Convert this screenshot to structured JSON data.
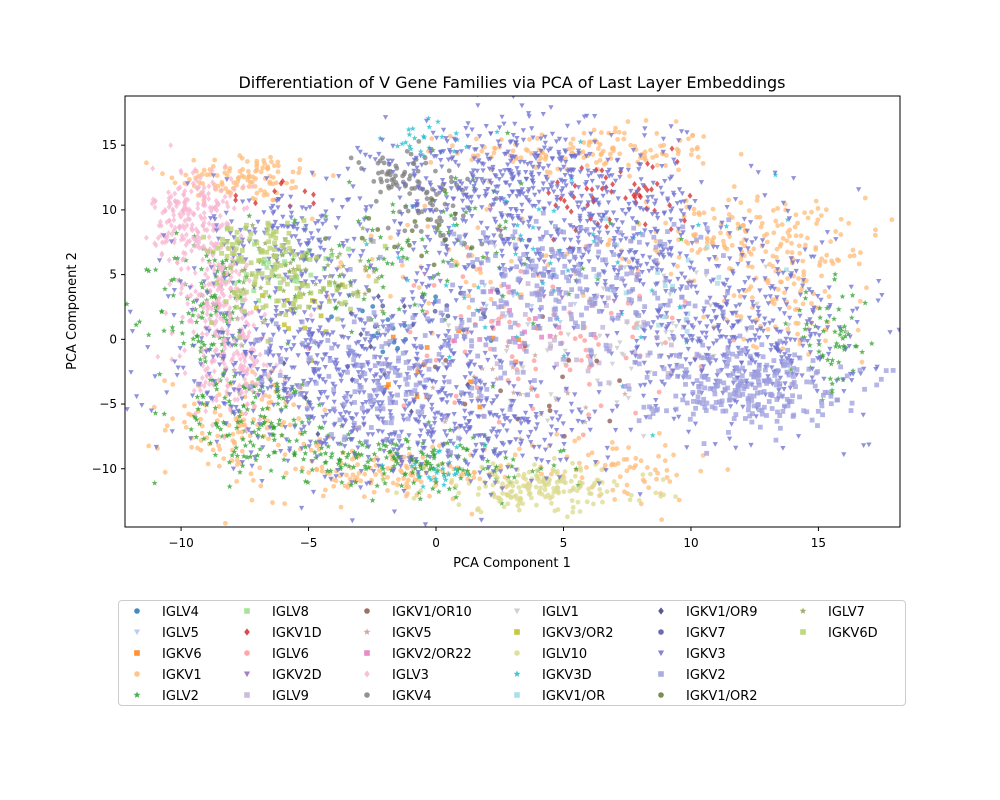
{
  "chart_data": {
    "type": "scatter",
    "title": "Differentiation of V Gene Families via PCA of Last Layer Embeddings",
    "xlabel": "PCA Component 1",
    "ylabel": "PCA Component 2",
    "xlim": [
      -12.2,
      18.2
    ],
    "ylim": [
      -14.5,
      18.8
    ],
    "xticks": [
      -10,
      -5,
      0,
      5,
      10,
      15
    ],
    "yticks": [
      -10,
      -5,
      0,
      5,
      10,
      15
    ],
    "grid": false,
    "legend_placement": "below plot, 6 columns",
    "series": [
      {
        "name": "IGLV4",
        "color": "#1f77b4",
        "marker": "circle",
        "clusters": [
          [
            -2,
            1,
            1.5,
            1.5,
            15
          ]
        ]
      },
      {
        "name": "IGLV5",
        "color": "#aec7e8",
        "marker": "triangle-down",
        "clusters": [
          [
            3,
            2,
            2,
            1.5,
            15
          ]
        ]
      },
      {
        "name": "IGKV6",
        "color": "#ff7f0e",
        "marker": "square",
        "clusters": [
          [
            1,
            -2,
            2,
            2,
            15
          ]
        ]
      },
      {
        "name": "IGKV1",
        "color": "#ffbb78",
        "marker": "circle",
        "clusters": [
          [
            -7.5,
            12.5,
            1.5,
            1.0,
            110
          ],
          [
            6,
            14.5,
            2.5,
            1.0,
            140
          ],
          [
            12,
            8,
            2.5,
            1.5,
            140
          ],
          [
            14,
            3.5,
            1.5,
            2.5,
            110
          ],
          [
            -7.5,
            -6.5,
            1.5,
            2.0,
            120
          ],
          [
            -2,
            -10.5,
            2.5,
            1.0,
            130
          ],
          [
            7,
            -10,
            2,
            1.5,
            70
          ],
          [
            2,
            6,
            3,
            2.5,
            60
          ]
        ]
      },
      {
        "name": "IGLV2",
        "color": "#2ca02c",
        "marker": "star",
        "clusters": [
          [
            -9,
            2,
            1.0,
            3.0,
            120
          ],
          [
            -7,
            -5.5,
            1.5,
            1.5,
            110
          ],
          [
            -3,
            -9,
            2.5,
            1.0,
            140
          ],
          [
            1,
            -10,
            2,
            1.0,
            60
          ],
          [
            15.5,
            0,
            0.8,
            2.0,
            60
          ],
          [
            -4,
            5,
            3,
            3,
            60
          ],
          [
            1,
            8,
            3,
            3,
            60
          ]
        ]
      },
      {
        "name": "IGLV8",
        "color": "#98df8a",
        "marker": "square",
        "clusters": [
          [
            -6,
            5,
            1.5,
            1.5,
            30
          ]
        ]
      },
      {
        "name": "IGKV1D",
        "color": "#d62728",
        "marker": "diamond",
        "clusters": [
          [
            7,
            11,
            1.5,
            1.5,
            55
          ],
          [
            -6,
            11,
            1,
            0.8,
            10
          ]
        ]
      },
      {
        "name": "IGLV6",
        "color": "#ff9896",
        "marker": "circle",
        "clusters": [
          [
            4,
            0,
            3,
            3,
            90
          ]
        ]
      },
      {
        "name": "IGKV2D",
        "color": "#9467bd",
        "marker": "triangle-down",
        "clusters": [
          [
            5,
            5,
            2.5,
            2,
            20
          ]
        ]
      },
      {
        "name": "IGLV9",
        "color": "#c5b0d5",
        "marker": "square",
        "clusters": [
          [
            6,
            0,
            2.5,
            2.5,
            40
          ]
        ]
      },
      {
        "name": "IGKV1/OR10",
        "color": "#8c564b",
        "marker": "circle",
        "clusters": [
          [
            4,
            -4,
            2,
            2,
            15
          ]
        ]
      },
      {
        "name": "IGKV5",
        "color": "#c49c94",
        "marker": "star",
        "clusters": [
          [
            3,
            -3,
            2,
            2,
            25
          ]
        ]
      },
      {
        "name": "IGKV2/OR22",
        "color": "#e377c2",
        "marker": "square",
        "clusters": [
          [
            3,
            1,
            2,
            2,
            15
          ]
        ]
      },
      {
        "name": "IGLV3",
        "color": "#f7b6d2",
        "marker": "diamond",
        "clusters": [
          [
            -9.5,
            9.5,
            0.8,
            2.0,
            200
          ],
          [
            -8.5,
            3,
            0.9,
            2.5,
            180
          ],
          [
            -7.8,
            -2.5,
            0.8,
            2.0,
            120
          ]
        ]
      },
      {
        "name": "IGKV4",
        "color": "#7f7f7f",
        "marker": "circle",
        "clusters": [
          [
            -1.5,
            12.5,
            1.2,
            1.0,
            60
          ],
          [
            0,
            10,
            1.0,
            1.5,
            40
          ]
        ]
      },
      {
        "name": "IGLV1",
        "color": "#c7c7c7",
        "marker": "triangle-down",
        "clusters": [
          [
            7,
            0,
            3,
            3,
            70
          ]
        ]
      },
      {
        "name": "IGKV3/OR2",
        "color": "#bcbd22",
        "marker": "square",
        "clusters": [
          [
            -5,
            2,
            1.5,
            1.5,
            15
          ]
        ]
      },
      {
        "name": "IGLV10",
        "color": "#dbdb8d",
        "marker": "circle",
        "clusters": [
          [
            4,
            -11.5,
            2.2,
            0.9,
            180
          ]
        ]
      },
      {
        "name": "IGKV3D",
        "color": "#17becf",
        "marker": "star",
        "clusters": [
          [
            0,
            15.5,
            1.0,
            1.0,
            25
          ],
          [
            0,
            -10,
            1.0,
            0.8,
            25
          ],
          [
            5,
            5,
            4,
            4,
            50
          ]
        ]
      },
      {
        "name": "IGKV1/OR",
        "color": "#9edae5",
        "marker": "square",
        "clusters": [
          [
            9,
            5,
            2,
            2,
            20
          ]
        ]
      },
      {
        "name": "IGKV1/OR9",
        "color": "#393b79",
        "marker": "diamond",
        "clusters": [
          [
            -3,
            -2,
            2,
            2,
            15
          ]
        ]
      },
      {
        "name": "IGKV7",
        "color": "#5254a3",
        "marker": "circle",
        "clusters": [
          [
            0,
            2,
            2,
            2,
            15
          ]
        ]
      },
      {
        "name": "IGKV3",
        "color": "#6b6ecf",
        "marker": "triangle-down",
        "clusters": [
          [
            -4,
            -2,
            3.5,
            3.5,
            650
          ],
          [
            3.5,
            12,
            3.0,
            2.5,
            500
          ],
          [
            1,
            -7,
            3,
            2.0,
            300
          ],
          [
            12,
            0,
            2.5,
            3.0,
            400
          ],
          [
            -6,
            8,
            1.5,
            2.0,
            150
          ],
          [
            7,
            7,
            3.5,
            2.5,
            300
          ]
        ]
      },
      {
        "name": "IGKV2",
        "color": "#9c9ede",
        "marker": "square",
        "clusters": [
          [
            12,
            -3.5,
            2.0,
            1.5,
            250
          ],
          [
            5,
            4,
            3.0,
            3.0,
            250
          ],
          [
            -2,
            -3,
            2.5,
            2.5,
            150
          ]
        ]
      },
      {
        "name": "IGKV1/OR2",
        "color": "#637939",
        "marker": "circle",
        "clusters": [
          [
            -2,
            8,
            2,
            2,
            20
          ]
        ]
      },
      {
        "name": "IGLV7",
        "color": "#8ca252",
        "marker": "star",
        "clusters": [
          [
            -5,
            5,
            1.5,
            1.5,
            60
          ]
        ]
      },
      {
        "name": "IGKV6D",
        "color": "#b5cf6b",
        "marker": "square",
        "clusters": [
          [
            -7,
            7.5,
            1.0,
            1.0,
            60
          ],
          [
            -5.5,
            4,
            1.5,
            1.5,
            80
          ]
        ]
      }
    ]
  }
}
